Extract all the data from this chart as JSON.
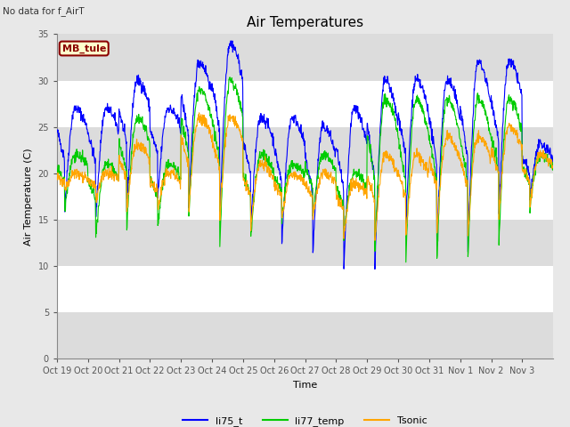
{
  "title": "Air Temperatures",
  "no_data_text": "No data for f_AirT",
  "mb_tule_label": "MB_tule",
  "xlabel": "Time",
  "ylabel": "Air Temperature (C)",
  "ylim": [
    0,
    35
  ],
  "yticks": [
    0,
    5,
    10,
    15,
    20,
    25,
    30,
    35
  ],
  "x_tick_labels": [
    "Oct 19",
    "Oct 20",
    "Oct 21",
    "Oct 22",
    "Oct 23",
    "Oct 24",
    "Oct 25",
    "Oct 26",
    "Oct 27",
    "Oct 28",
    "Oct 29",
    "Oct 30",
    "Oct 31",
    "Nov 1",
    "Nov 2",
    "Nov 3"
  ],
  "num_days": 16,
  "color_blue": "#0000FF",
  "color_green": "#00CC00",
  "color_orange": "#FFA500",
  "legend_labels": [
    "li75_t",
    "li77_temp",
    "Tsonic"
  ],
  "title_fontsize": 11,
  "axis_label_fontsize": 8,
  "tick_fontsize": 7,
  "bg_color": "#E8E8E8",
  "plot_bg_color": "#FFFFFF",
  "band_color": "#DCDCDC",
  "mb_tule_bg": "#FFFFCC",
  "mb_tule_border": "#8B0000",
  "mb_tule_text_color": "#8B0000",
  "day_maxes_blue": [
    27,
    27,
    30,
    27,
    32,
    34,
    26,
    26,
    25,
    27,
    30,
    30,
    30,
    32,
    32,
    23
  ],
  "day_mins_blue": [
    16,
    15,
    16,
    17,
    16,
    15,
    14,
    12,
    11,
    9,
    9,
    14,
    12,
    11,
    15,
    17
  ],
  "day_maxes_green": [
    22,
    21,
    26,
    21,
    29,
    30,
    22,
    21,
    22,
    20,
    28,
    28,
    28,
    28,
    28,
    22
  ],
  "day_mins_green": [
    16,
    13,
    14,
    14,
    15,
    12,
    13,
    15,
    15,
    13,
    11,
    10,
    10,
    10,
    12,
    16
  ],
  "day_maxes_orange": [
    20,
    20,
    23,
    20,
    26,
    26,
    21,
    20,
    20,
    19,
    22,
    22,
    24,
    24,
    25,
    22
  ],
  "day_mins_orange": [
    18,
    17,
    16,
    16,
    16,
    15,
    14,
    15,
    15,
    13,
    12,
    13,
    13,
    13,
    15,
    16
  ]
}
